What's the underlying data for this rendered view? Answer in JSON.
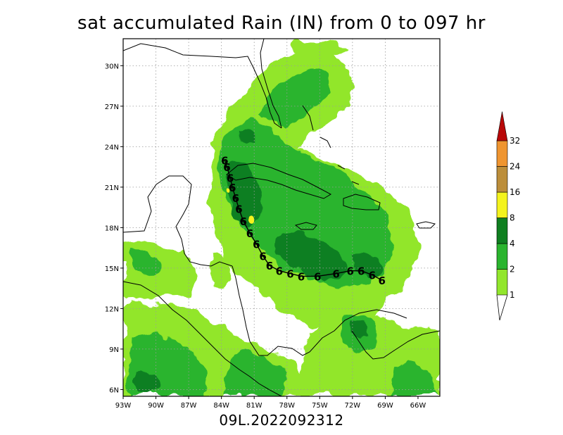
{
  "title": "sat accumulated Rain (IN) from 0 to 097 hr",
  "footer": "09L.2022092312",
  "colors": {
    "c1": "#92e62c",
    "c2": "#2ab42e",
    "c4": "#0f7f20",
    "c8": "#f4f31d",
    "c16": "#bc8e3a",
    "c24": "#ef9530",
    "c32": "#b80808"
  },
  "chart_data": {
    "type": "heatmap",
    "map_extent": {
      "lon": [
        -93,
        -64
      ],
      "lat": [
        5.5,
        32
      ]
    },
    "xticks": [
      {
        "lon": -93,
        "label": "93W"
      },
      {
        "lon": -90,
        "label": "90W"
      },
      {
        "lon": -87,
        "label": "87W"
      },
      {
        "lon": -84,
        "label": "84W"
      },
      {
        "lon": -81,
        "label": "81W"
      },
      {
        "lon": -78,
        "label": "78W"
      },
      {
        "lon": -75,
        "label": "75W"
      },
      {
        "lon": -72,
        "label": "72W"
      },
      {
        "lon": -69,
        "label": "69W"
      },
      {
        "lon": -66,
        "label": "66W"
      }
    ],
    "yticks": [
      {
        "lat": 6,
        "label": "6N"
      },
      {
        "lat": 9,
        "label": "9N"
      },
      {
        "lat": 12,
        "label": "12N"
      },
      {
        "lat": 15,
        "label": "15N"
      },
      {
        "lat": 18,
        "label": "18N"
      },
      {
        "lat": 21,
        "label": "21N"
      },
      {
        "lat": 24,
        "label": "24N"
      },
      {
        "lat": 27,
        "label": "27N"
      },
      {
        "lat": 30,
        "label": "30N"
      }
    ],
    "grid": true,
    "legend": {
      "placement": "right",
      "levels": [
        "1",
        "2",
        "4",
        "8",
        "16",
        "24",
        "32"
      ]
    },
    "track": [
      {
        "lon": -69.3,
        "lat": 14.1
      },
      {
        "lon": -70.2,
        "lat": 14.5
      },
      {
        "lon": -71.2,
        "lat": 14.8
      },
      {
        "lon": -72.2,
        "lat": 14.8
      },
      {
        "lon": -73.5,
        "lat": 14.6
      },
      {
        "lon": -75.2,
        "lat": 14.4
      },
      {
        "lon": -76.7,
        "lat": 14.4
      },
      {
        "lon": -77.7,
        "lat": 14.6
      },
      {
        "lon": -78.7,
        "lat": 14.8
      },
      {
        "lon": -79.6,
        "lat": 15.2
      },
      {
        "lon": -80.2,
        "lat": 15.9
      },
      {
        "lon": -80.8,
        "lat": 16.8
      },
      {
        "lon": -81.4,
        "lat": 17.6
      },
      {
        "lon": -82.0,
        "lat": 18.5
      },
      {
        "lon": -82.4,
        "lat": 19.4
      },
      {
        "lon": -82.7,
        "lat": 20.2
      },
      {
        "lon": -83.0,
        "lat": 21.0
      },
      {
        "lon": -83.2,
        "lat": 21.7
      },
      {
        "lon": -83.5,
        "lat": 22.5
      },
      {
        "lon": -83.7,
        "lat": 23.0
      }
    ],
    "track_marker": "6"
  }
}
